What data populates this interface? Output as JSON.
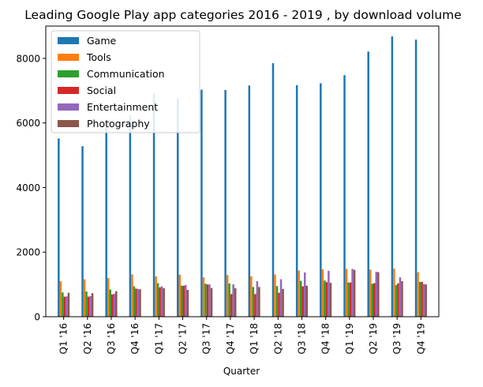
{
  "chart_data": {
    "type": "bar",
    "title": "Leading Google Play app categories 2016 - 2019 , by download volume",
    "xlabel": "Quarter",
    "ylabel": "",
    "ylim": [
      0,
      9000
    ],
    "yticks": [
      0,
      2000,
      4000,
      6000,
      8000
    ],
    "grid": false,
    "legend_position": "top-left",
    "categories": [
      "Q1 '16",
      "Q2 '16",
      "Q3 '16",
      "Q4 '16",
      "Q1 '17",
      "Q2 '17",
      "Q3 '17",
      "Q4 '17",
      "Q1 '18",
      "Q2 '18",
      "Q3 '18",
      "Q4 '18",
      "Q1 '19",
      "Q2 '19",
      "Q3 '19",
      "Q4 '19"
    ],
    "series": [
      {
        "name": "Game",
        "color": "#1f77b4",
        "values": [
          5520,
          5280,
          5940,
          6240,
          6900,
          6760,
          7030,
          7020,
          7160,
          7850,
          7170,
          7230,
          7480,
          8210,
          8680,
          8580
        ]
      },
      {
        "name": "Tools",
        "color": "#ff7f0e",
        "values": [
          1100,
          1160,
          1200,
          1310,
          1250,
          1300,
          1220,
          1290,
          1250,
          1310,
          1430,
          1470,
          1480,
          1460,
          1490,
          1380
        ]
      },
      {
        "name": "Communication",
        "color": "#2ca02c",
        "values": [
          750,
          780,
          840,
          940,
          1040,
          960,
          1020,
          1030,
          920,
          950,
          1110,
          1120,
          1060,
          1020,
          980,
          1080
        ]
      },
      {
        "name": "Social",
        "color": "#d62728",
        "values": [
          620,
          620,
          690,
          870,
          910,
          960,
          1000,
          700,
          700,
          740,
          940,
          1070,
          1060,
          1040,
          1030,
          1080
        ]
      },
      {
        "name": "Entertainment",
        "color": "#9467bd",
        "values": [
          630,
          640,
          710,
          860,
          940,
          980,
          1000,
          1000,
          1100,
          1160,
          1370,
          1420,
          1480,
          1390,
          1220,
          1010
        ]
      },
      {
        "name": "Photography",
        "color": "#8c564b",
        "values": [
          740,
          730,
          790,
          850,
          880,
          830,
          890,
          880,
          920,
          860,
          960,
          1050,
          1450,
          1380,
          1100,
          1000
        ]
      }
    ]
  }
}
